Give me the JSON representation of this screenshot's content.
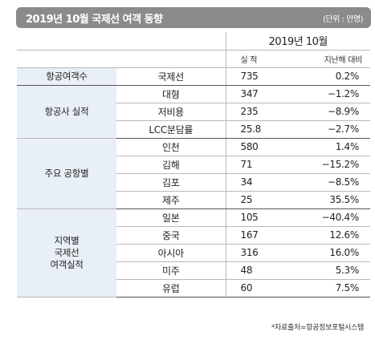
{
  "header": {
    "title": "2019년 10월 국제선 여객 동향",
    "unit": "(단위 : 만명)"
  },
  "table": {
    "period": "2019년 10월",
    "col_value": "실 적",
    "col_yoy": "지난해 대비",
    "groups": [
      {
        "category": "항공여객수",
        "rows": [
          {
            "label": "국제선",
            "value": "735",
            "yoy": "0.2%"
          }
        ]
      },
      {
        "category": "항공사 실적",
        "rows": [
          {
            "label": "대형",
            "value": "347",
            "yoy": "−1.2%"
          },
          {
            "label": "저비용",
            "value": "235",
            "yoy": "−8.9%"
          },
          {
            "label": "LCC분담률",
            "value": "25.8",
            "yoy": "−2.7%"
          }
        ]
      },
      {
        "category": "주요 공항별",
        "rows": [
          {
            "label": "인천",
            "value": "580",
            "yoy": "1.4%"
          },
          {
            "label": "김해",
            "value": "71",
            "yoy": "−15.2%"
          },
          {
            "label": "김포",
            "value": "34",
            "yoy": "−8.5%"
          },
          {
            "label": "제주",
            "value": "25",
            "yoy": "35.5%"
          }
        ]
      },
      {
        "category": "지역별\n국제선\n여객실적",
        "rows": [
          {
            "label": "일본",
            "value": "105",
            "yoy": "−40.4%"
          },
          {
            "label": "중국",
            "value": "167",
            "yoy": "12.6%"
          },
          {
            "label": "아시아",
            "value": "316",
            "yoy": "16.0%"
          },
          {
            "label": "미주",
            "value": "48",
            "yoy": "5.3%"
          },
          {
            "label": "유럽",
            "value": "60",
            "yoy": "7.5%"
          }
        ]
      }
    ]
  },
  "source": "*자료출처=항공정보포털시스템"
}
